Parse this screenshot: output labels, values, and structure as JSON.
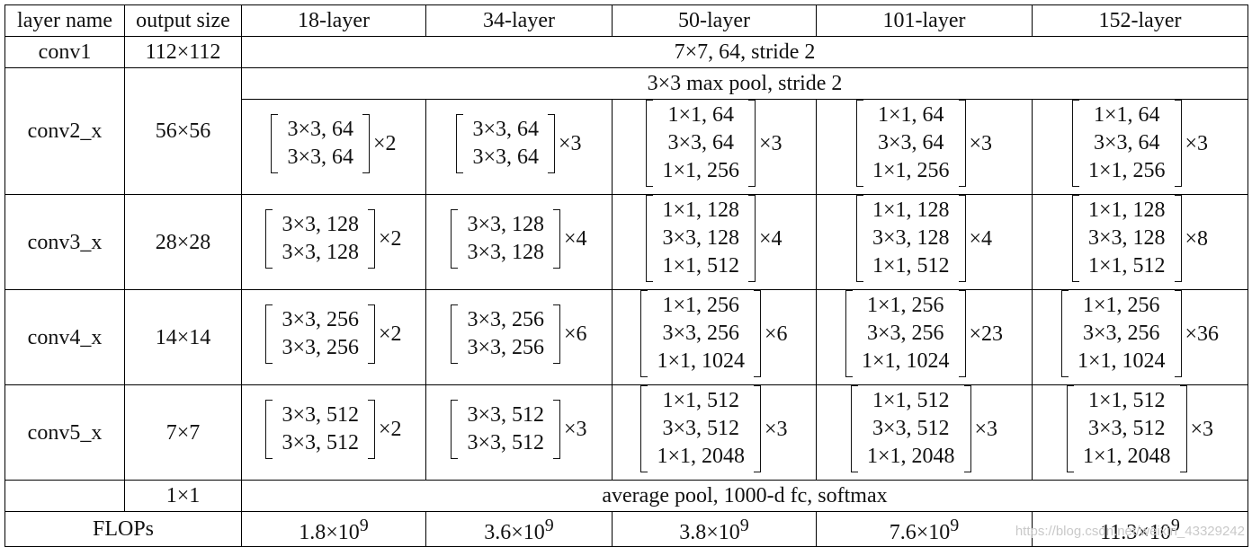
{
  "headers": [
    "layer name",
    "output size",
    "18-layer",
    "34-layer",
    "50-layer",
    "101-layer",
    "152-layer"
  ],
  "conv1": {
    "name": "conv1",
    "size": "112×112",
    "spec": "7×7, 64, stride 2"
  },
  "conv2_pool": "3×3 max pool, stride 2",
  "blocks": [
    {
      "name": "conv2_x",
      "size": "56×56",
      "cells": [
        {
          "rows": [
            "3×3, 64",
            "3×3, 64"
          ],
          "rep": "×2"
        },
        {
          "rows": [
            "3×3, 64",
            "3×3, 64"
          ],
          "rep": "×3"
        },
        {
          "rows": [
            "1×1, 64",
            "3×3, 64",
            "1×1, 256"
          ],
          "rep": "×3"
        },
        {
          "rows": [
            "1×1, 64",
            "3×3, 64",
            "1×1, 256"
          ],
          "rep": "×3"
        },
        {
          "rows": [
            "1×1, 64",
            "3×3, 64",
            "1×1, 256"
          ],
          "rep": "×3"
        }
      ]
    },
    {
      "name": "conv3_x",
      "size": "28×28",
      "cells": [
        {
          "rows": [
            "3×3, 128",
            "3×3, 128"
          ],
          "rep": "×2"
        },
        {
          "rows": [
            "3×3, 128",
            "3×3, 128"
          ],
          "rep": "×4"
        },
        {
          "rows": [
            "1×1, 128",
            "3×3, 128",
            "1×1, 512"
          ],
          "rep": "×4"
        },
        {
          "rows": [
            "1×1, 128",
            "3×3, 128",
            "1×1, 512"
          ],
          "rep": "×4"
        },
        {
          "rows": [
            "1×1, 128",
            "3×3, 128",
            "1×1, 512"
          ],
          "rep": "×8"
        }
      ]
    },
    {
      "name": "conv4_x",
      "size": "14×14",
      "cells": [
        {
          "rows": [
            "3×3, 256",
            "3×3, 256"
          ],
          "rep": "×2"
        },
        {
          "rows": [
            "3×3, 256",
            "3×3, 256"
          ],
          "rep": "×6"
        },
        {
          "rows": [
            "1×1, 256",
            "3×3, 256",
            "1×1, 1024"
          ],
          "rep": "×6"
        },
        {
          "rows": [
            "1×1, 256",
            "3×3, 256",
            "1×1, 1024"
          ],
          "rep": "×23"
        },
        {
          "rows": [
            "1×1, 256",
            "3×3, 256",
            "1×1, 1024"
          ],
          "rep": "×36"
        }
      ]
    },
    {
      "name": "conv5_x",
      "size": "7×7",
      "cells": [
        {
          "rows": [
            "3×3, 512",
            "3×3, 512"
          ],
          "rep": "×2"
        },
        {
          "rows": [
            "3×3, 512",
            "3×3, 512"
          ],
          "rep": "×3"
        },
        {
          "rows": [
            "1×1, 512",
            "3×3, 512",
            "1×1, 2048"
          ],
          "rep": "×3"
        },
        {
          "rows": [
            "1×1, 512",
            "3×3, 512",
            "1×1, 2048"
          ],
          "rep": "×3"
        },
        {
          "rows": [
            "1×1, 512",
            "3×3, 512",
            "1×1, 2048"
          ],
          "rep": "×3"
        }
      ]
    }
  ],
  "final": {
    "size": "1×1",
    "spec": "average pool, 1000-d fc, softmax"
  },
  "flops": {
    "label": "FLOPs",
    "exp": "9",
    "values": [
      "1.8×10",
      "3.6×10",
      "3.8×10",
      "7.6×10",
      "11.3×10"
    ]
  },
  "watermark": "https://blog.csdn.net/weixin_43329242"
}
